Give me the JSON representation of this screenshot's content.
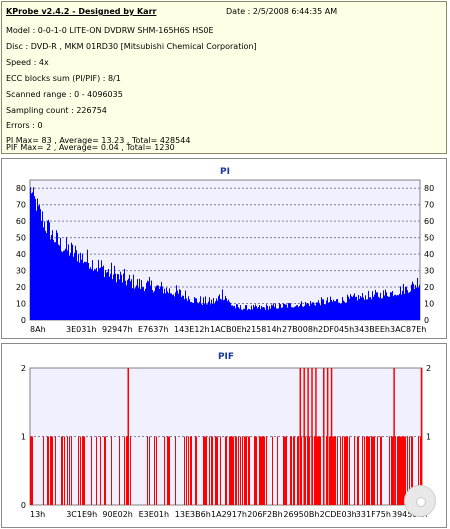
{
  "info": {
    "title": "KProbe v2.4.2 - Designed by Karr",
    "date": "Date : 2/5/2008 6:44:35 AM",
    "lines": [
      "Model : 0-0-1-0 LITE-ON DVDRW SHM-165H6S HS0E",
      "Disc : DVD-R , MKM 01RD30  [Mitsubishi Chemical Corporation]",
      "Speed : 4x",
      "ECC blocks sum (PI/PIF) : 8/1",
      "Scanned range : 0 - 4096035",
      "Sampling count : 226754",
      "Errors : 0",
      "PI Max= 83 , Average= 13.23 , Total= 428544",
      "PIF Max= 2 , Average= 0.04 , Total= 1230"
    ]
  },
  "chart_data": [
    {
      "type": "area",
      "title": "PI",
      "ylim": [
        0,
        85
      ],
      "yticks": [
        0,
        10,
        20,
        30,
        40,
        50,
        60,
        70,
        80
      ],
      "xtick_labels": [
        "8Ah",
        "3E031h",
        "92947h",
        "E7637h",
        "143E12h",
        "1ACB0Eh",
        "215814h",
        "27B008h",
        "2DF045h",
        "343BEEh",
        "3AC87Eh"
      ],
      "color": "#0000ff",
      "grid": true,
      "profile": [
        [
          0.0,
          78,
          83
        ],
        [
          0.01,
          70,
          80
        ],
        [
          0.02,
          62,
          75
        ],
        [
          0.04,
          52,
          66
        ],
        [
          0.06,
          46,
          58
        ],
        [
          0.08,
          41,
          52
        ],
        [
          0.1,
          38,
          50
        ],
        [
          0.13,
          34,
          46
        ],
        [
          0.16,
          30,
          42
        ],
        [
          0.19,
          26,
          38
        ],
        [
          0.22,
          23,
          34
        ],
        [
          0.25,
          20,
          30
        ],
        [
          0.28,
          18,
          27
        ],
        [
          0.31,
          17,
          26
        ],
        [
          0.34,
          16,
          24
        ],
        [
          0.37,
          14,
          22
        ],
        [
          0.4,
          12,
          19
        ],
        [
          0.42,
          10,
          16
        ],
        [
          0.44,
          9,
          15
        ],
        [
          0.46,
          9,
          14
        ],
        [
          0.48,
          9,
          16
        ],
        [
          0.49,
          12,
          22
        ],
        [
          0.5,
          12,
          22
        ],
        [
          0.51,
          9,
          14
        ],
        [
          0.53,
          6,
          10
        ],
        [
          0.56,
          6,
          9
        ],
        [
          0.6,
          6,
          10
        ],
        [
          0.65,
          7,
          11
        ],
        [
          0.7,
          8,
          12
        ],
        [
          0.75,
          9,
          14
        ],
        [
          0.8,
          10,
          15
        ],
        [
          0.85,
          12,
          17
        ],
        [
          0.9,
          13,
          19
        ],
        [
          0.95,
          15,
          22
        ],
        [
          0.98,
          17,
          25
        ],
        [
          1.0,
          20,
          30
        ]
      ]
    },
    {
      "type": "bar",
      "title": "PIF",
      "ylim": [
        0,
        2
      ],
      "yticks": [
        0,
        1,
        2
      ],
      "xtick_labels": [
        "13h",
        "3C1E9h",
        "90E02h",
        "E3E01h",
        "13E3B6h",
        "1A2917h",
        "206F2Bh",
        "26950Bh",
        "2CDE03h",
        "331F75h",
        "39458Eh"
      ],
      "color": "#ff0000",
      "grid": true,
      "value_2_at": [
        0.25,
        0.69,
        0.7,
        0.71,
        0.72,
        0.73,
        0.75,
        0.76,
        0.77,
        0.93,
        1.0
      ]
    }
  ]
}
